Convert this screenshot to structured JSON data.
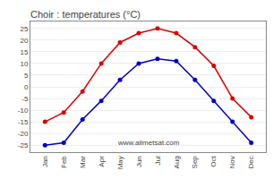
{
  "chart_data": {
    "type": "line",
    "title": "Choir : temperatures (°C)",
    "categories": [
      "Jan",
      "Feb",
      "Mar",
      "Apr",
      "May",
      "Jun",
      "Jul",
      "Aug",
      "Sep",
      "Oct",
      "Nov",
      "Dec"
    ],
    "series": [
      {
        "color": "#dd0000",
        "marker": "circle",
        "line_style": "solid",
        "values": [
          -15,
          -11,
          -2,
          10,
          19,
          23,
          25,
          23,
          17,
          9,
          -5,
          -13
        ]
      },
      {
        "color": "#0000cc",
        "marker": "circle",
        "line_style": "solid",
        "values": [
          -25,
          -24,
          -14,
          -6,
          3,
          10,
          12,
          11,
          3,
          -6,
          -15,
          -24
        ]
      }
    ],
    "ylim": [
      -28,
      28
    ],
    "yticks": [
      -25,
      -20,
      -15,
      -10,
      -5,
      0,
      5,
      10,
      15,
      20,
      25
    ],
    "grid": true,
    "annotations": [
      "www.allmetsat.com"
    ]
  }
}
